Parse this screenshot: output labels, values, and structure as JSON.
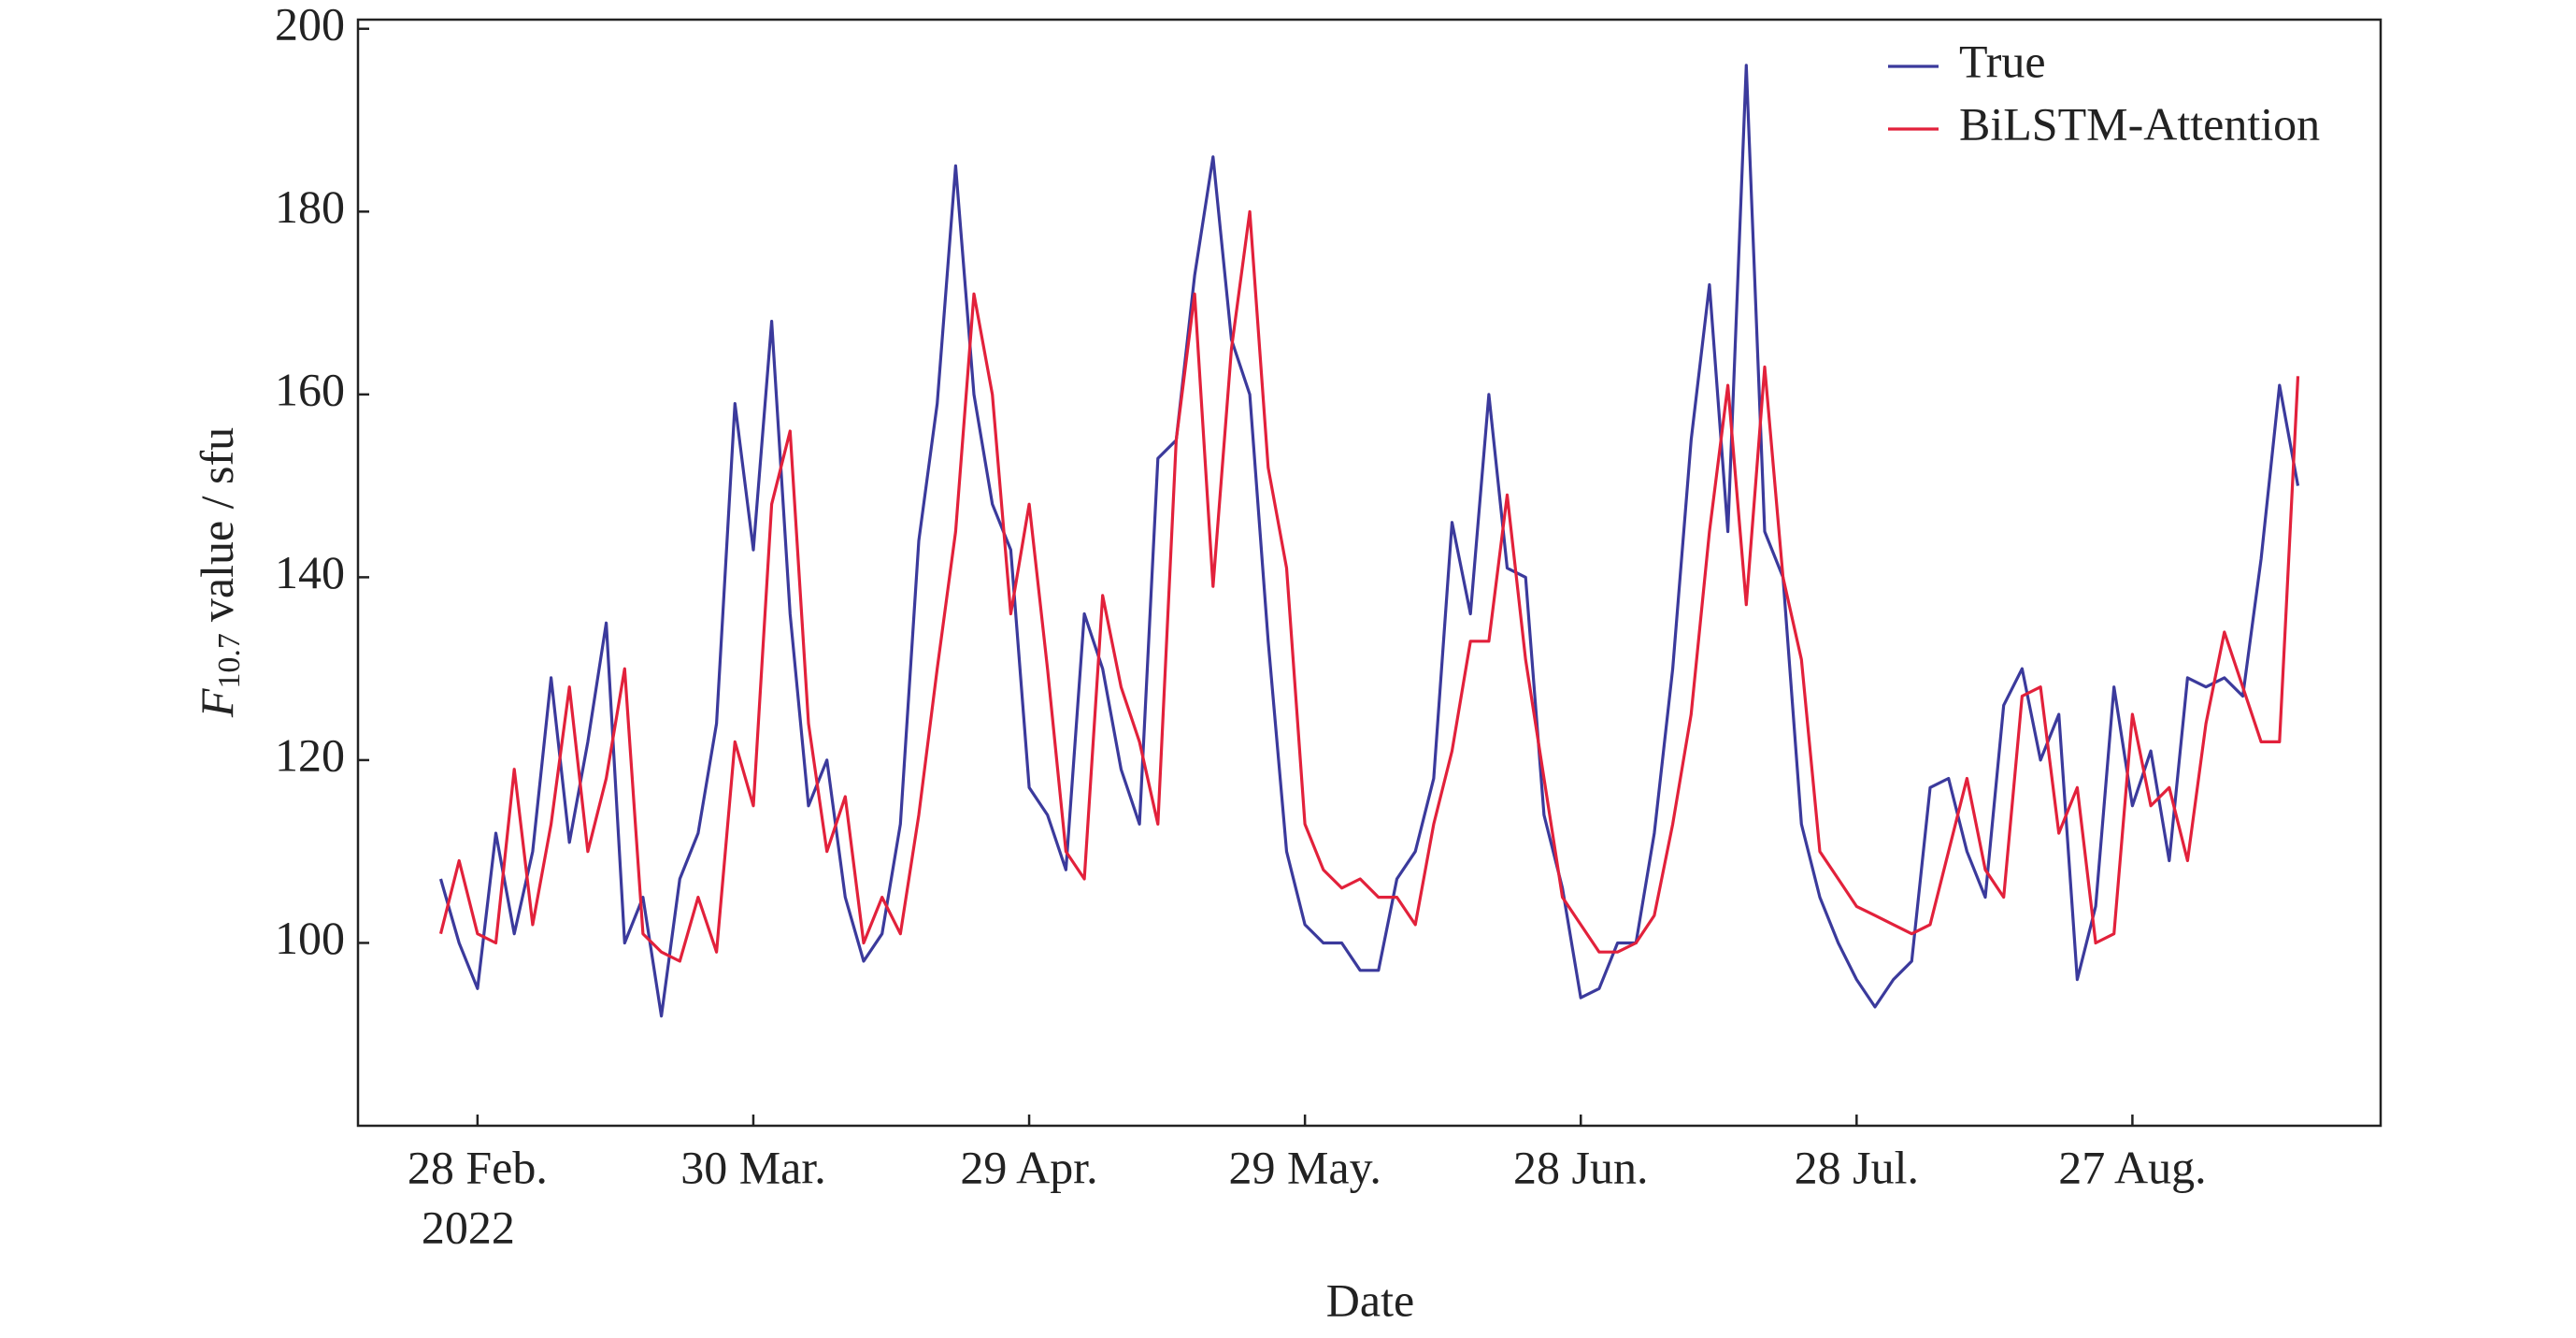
{
  "chart_data": {
    "type": "line",
    "xlabel": "Date",
    "ylabel_symbol": "F",
    "ylabel_subscript": "10.7",
    "ylabel_rest": "value / sfu",
    "x_year_label": "2022",
    "x": [
      "2022-02-24",
      "2022-02-26",
      "2022-02-28",
      "2022-03-02",
      "2022-03-04",
      "2022-03-06",
      "2022-03-08",
      "2022-03-10",
      "2022-03-12",
      "2022-03-14",
      "2022-03-16",
      "2022-03-18",
      "2022-03-20",
      "2022-03-22",
      "2022-03-24",
      "2022-03-26",
      "2022-03-28",
      "2022-03-30",
      "2022-04-01",
      "2022-04-03",
      "2022-04-05",
      "2022-04-07",
      "2022-04-09",
      "2022-04-11",
      "2022-04-13",
      "2022-04-15",
      "2022-04-17",
      "2022-04-19",
      "2022-04-21",
      "2022-04-23",
      "2022-04-25",
      "2022-04-27",
      "2022-04-29",
      "2022-05-01",
      "2022-05-03",
      "2022-05-05",
      "2022-05-07",
      "2022-05-09",
      "2022-05-11",
      "2022-05-13",
      "2022-05-15",
      "2022-05-17",
      "2022-05-19",
      "2022-05-21",
      "2022-05-23",
      "2022-05-25",
      "2022-05-27",
      "2022-05-29",
      "2022-05-31",
      "2022-06-02",
      "2022-06-04",
      "2022-06-06",
      "2022-06-08",
      "2022-06-10",
      "2022-06-12",
      "2022-06-14",
      "2022-06-16",
      "2022-06-18",
      "2022-06-20",
      "2022-06-22",
      "2022-06-24",
      "2022-06-26",
      "2022-06-28",
      "2022-06-30",
      "2022-07-02",
      "2022-07-04",
      "2022-07-06",
      "2022-07-08",
      "2022-07-10",
      "2022-07-12",
      "2022-07-14",
      "2022-07-16",
      "2022-07-18",
      "2022-07-20",
      "2022-07-22",
      "2022-07-24",
      "2022-07-26",
      "2022-07-28",
      "2022-07-30",
      "2022-08-01",
      "2022-08-03",
      "2022-08-05",
      "2022-08-07",
      "2022-08-09",
      "2022-08-11",
      "2022-08-13",
      "2022-08-15",
      "2022-08-17",
      "2022-08-19",
      "2022-08-21",
      "2022-08-23",
      "2022-08-25",
      "2022-08-27",
      "2022-08-29",
      "2022-08-31",
      "2022-09-02",
      "2022-09-04",
      "2022-09-06",
      "2022-09-08",
      "2022-09-10",
      "2022-09-12",
      "2022-09-14"
    ],
    "series": [
      {
        "name": "True",
        "color": "#3b3a9c",
        "values": [
          107,
          100,
          95,
          112,
          101,
          110,
          129,
          111,
          122,
          135,
          100,
          105,
          92,
          107,
          112,
          124,
          159,
          143,
          168,
          136,
          115,
          120,
          105,
          98,
          101,
          113,
          144,
          159,
          185,
          160,
          148,
          143,
          117,
          114,
          108,
          136,
          130,
          119,
          113,
          153,
          155,
          173,
          186,
          166,
          160,
          133,
          110,
          102,
          100,
          100,
          97,
          97,
          107,
          110,
          118,
          146,
          136,
          160,
          141,
          140,
          114,
          106,
          94,
          95,
          100,
          100,
          112,
          130,
          155,
          172,
          145,
          196,
          145,
          140,
          113,
          105,
          100,
          96,
          93,
          96,
          98,
          117,
          118,
          110,
          105,
          126,
          130,
          120,
          125,
          96,
          104,
          128,
          115,
          121,
          109,
          129,
          128,
          129,
          127,
          142,
          161,
          150
        ]
      },
      {
        "name": "BiLSTM-Attention",
        "color": "#e2213b",
        "values": [
          101,
          109,
          101,
          100,
          119,
          102,
          113,
          128,
          110,
          118,
          130,
          101,
          99,
          98,
          105,
          99,
          122,
          115,
          148,
          156,
          124,
          110,
          116,
          100,
          105,
          101,
          114,
          130,
          145,
          171,
          160,
          136,
          148,
          130,
          110,
          107,
          138,
          128,
          122,
          113,
          155,
          171,
          139,
          165,
          180,
          152,
          141,
          113,
          108,
          106,
          107,
          105,
          105,
          102,
          113,
          121,
          133,
          133,
          149,
          131,
          118,
          105,
          102,
          99,
          99,
          100,
          103,
          113,
          125,
          145,
          161,
          137,
          163,
          140,
          131,
          110,
          107,
          104,
          103,
          102,
          101,
          102,
          110,
          118,
          108,
          105,
          127,
          128,
          112,
          117,
          100,
          101,
          125,
          115,
          117,
          109,
          124,
          134,
          128,
          122,
          122,
          162
        ]
      }
    ],
    "xlim": [
      "2022-02-15",
      "2022-09-23"
    ],
    "xticks": [
      {
        "value": "2022-02-28",
        "label": "28 Feb."
      },
      {
        "value": "2022-03-30",
        "label": "30 Mar."
      },
      {
        "value": "2022-04-29",
        "label": "29 Apr."
      },
      {
        "value": "2022-05-29",
        "label": "29 May."
      },
      {
        "value": "2022-06-28",
        "label": "28 Jun."
      },
      {
        "value": "2022-07-28",
        "label": "28 Jul."
      },
      {
        "value": "2022-08-27",
        "label": "27 Aug."
      }
    ],
    "ylim": [
      80,
      201
    ],
    "yticks": [
      100,
      120,
      140,
      160,
      180,
      200
    ],
    "grid": false,
    "legend": "upper right"
  }
}
